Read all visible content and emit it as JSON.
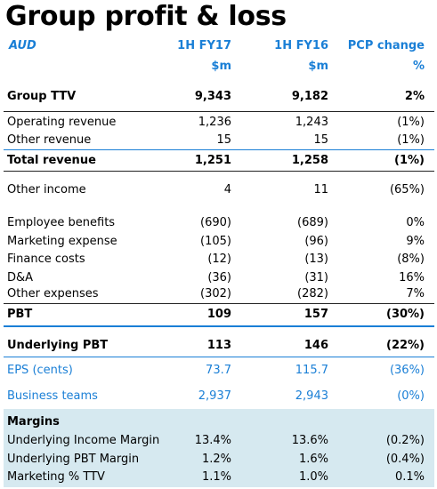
{
  "title": "Group profit & loss",
  "header": {
    "currency": "AUD",
    "col1": "1H FY17",
    "col2": "1H FY16",
    "col3": "PCP change",
    "unit1": "$m",
    "unit2": "$m",
    "unit3": "%"
  },
  "rows": [
    {
      "label": "Group TTV",
      "v1": "9,343",
      "v2": "9,182",
      "v3": "2%"
    },
    {
      "label": "Operating revenue",
      "v1": "1,236",
      "v2": "1,243",
      "v3": "(1%)"
    },
    {
      "label": "Other revenue",
      "v1": "15",
      "v2": "15",
      "v3": "(1%)"
    },
    {
      "label": "Total revenue",
      "v1": "1,251",
      "v2": "1,258",
      "v3": "(1%)"
    },
    {
      "label": "Other income",
      "v1": "4",
      "v2": "11",
      "v3": "(65%)"
    },
    {
      "label": "Employee benefits",
      "v1": "(690)",
      "v2": "(689)",
      "v3": "0%"
    },
    {
      "label": "Marketing expense",
      "v1": "(105)",
      "v2": "(96)",
      "v3": "9%"
    },
    {
      "label": "Finance costs",
      "v1": "(12)",
      "v2": "(13)",
      "v3": "(8%)"
    },
    {
      "label": "D&A",
      "v1": "(36)",
      "v2": "(31)",
      "v3": "16%"
    },
    {
      "label": "Other expenses",
      "v1": "(302)",
      "v2": "(282)",
      "v3": "7%"
    },
    {
      "label": "PBT",
      "v1": "109",
      "v2": "157",
      "v3": "(30%)"
    },
    {
      "label": "Underlying PBT",
      "v1": "113",
      "v2": "146",
      "v3": "(22%)"
    },
    {
      "label": "EPS (cents)",
      "v1": "73.7",
      "v2": "115.7",
      "v3": "(36%)"
    },
    {
      "label": "Business teams",
      "v1": "2,937",
      "v2": "2,943",
      "v3": "(0%)"
    }
  ],
  "margins": {
    "heading": "Margins",
    "rows": [
      {
        "label": "Underlying Income Margin",
        "v1": "13.4%",
        "v2": "13.6%",
        "v3": "(0.2%)"
      },
      {
        "label": "Underlying PBT Margin",
        "v1": "1.2%",
        "v2": "1.6%",
        "v3": "(0.4%)"
      },
      {
        "label": "Marketing % TTV",
        "v1": "1.1%",
        "v2": "1.0%",
        "v3": "0.1%"
      }
    ]
  },
  "colors": {
    "accent": "#1a7fd6",
    "margins_background": "#d6e9f0"
  }
}
